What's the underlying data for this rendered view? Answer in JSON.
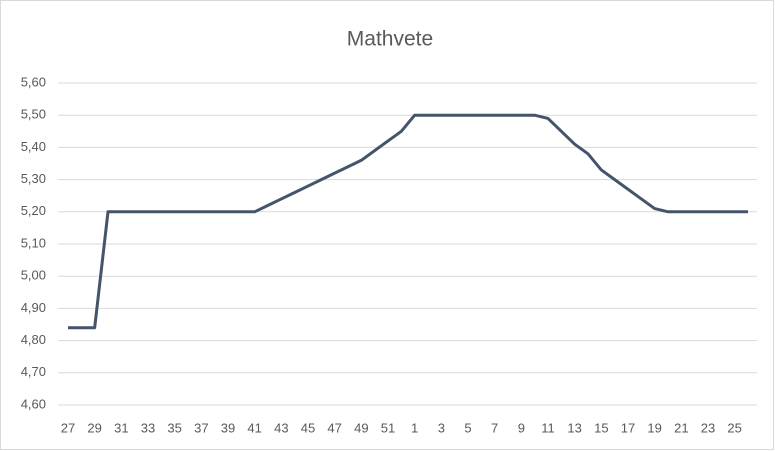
{
  "chart_data": {
    "type": "line",
    "title": "Mathvete",
    "categories": [
      "27",
      null,
      "29",
      null,
      "31",
      null,
      "33",
      null,
      "35",
      null,
      "37",
      null,
      "39",
      null,
      "41",
      null,
      "43",
      null,
      "45",
      null,
      "47",
      null,
      "49",
      null,
      "51",
      null,
      "1",
      null,
      "3",
      null,
      "5",
      null,
      "7",
      null,
      "9",
      null,
      "11",
      null,
      "13",
      null,
      "15",
      null,
      "17",
      null,
      "19",
      null,
      "21",
      null,
      "23",
      null,
      "25",
      null
    ],
    "series": [
      {
        "name": "Mathvete",
        "color": "#44546a",
        "values": [
          4.84,
          4.84,
          4.84,
          5.2,
          5.2,
          5.2,
          5.2,
          5.2,
          5.2,
          5.2,
          5.2,
          5.2,
          5.2,
          5.2,
          5.2,
          5.22,
          5.24,
          5.26,
          5.28,
          5.3,
          5.32,
          5.34,
          5.36,
          5.39,
          5.42,
          5.45,
          5.5,
          5.5,
          5.5,
          5.5,
          5.5,
          5.5,
          5.5,
          5.5,
          5.5,
          5.5,
          5.49,
          5.45,
          5.41,
          5.38,
          5.33,
          5.3,
          5.27,
          5.24,
          5.21,
          5.2,
          5.2,
          5.2,
          5.2,
          5.2,
          5.2,
          5.2
        ]
      }
    ],
    "ylim": [
      4.6,
      5.6
    ],
    "yticks": [
      {
        "value": 4.6,
        "label": "4,60"
      },
      {
        "value": 4.7,
        "label": "4,70"
      },
      {
        "value": 4.8,
        "label": "4,80"
      },
      {
        "value": 4.9,
        "label": "4,90"
      },
      {
        "value": 5.0,
        "label": "5,00"
      },
      {
        "value": 5.1,
        "label": "5,10"
      },
      {
        "value": 5.2,
        "label": "5,20"
      },
      {
        "value": 5.3,
        "label": "5,30"
      },
      {
        "value": 5.4,
        "label": "5,40"
      },
      {
        "value": 5.5,
        "label": "5,50"
      },
      {
        "value": 5.6,
        "label": "5,60"
      }
    ],
    "grid": true
  }
}
